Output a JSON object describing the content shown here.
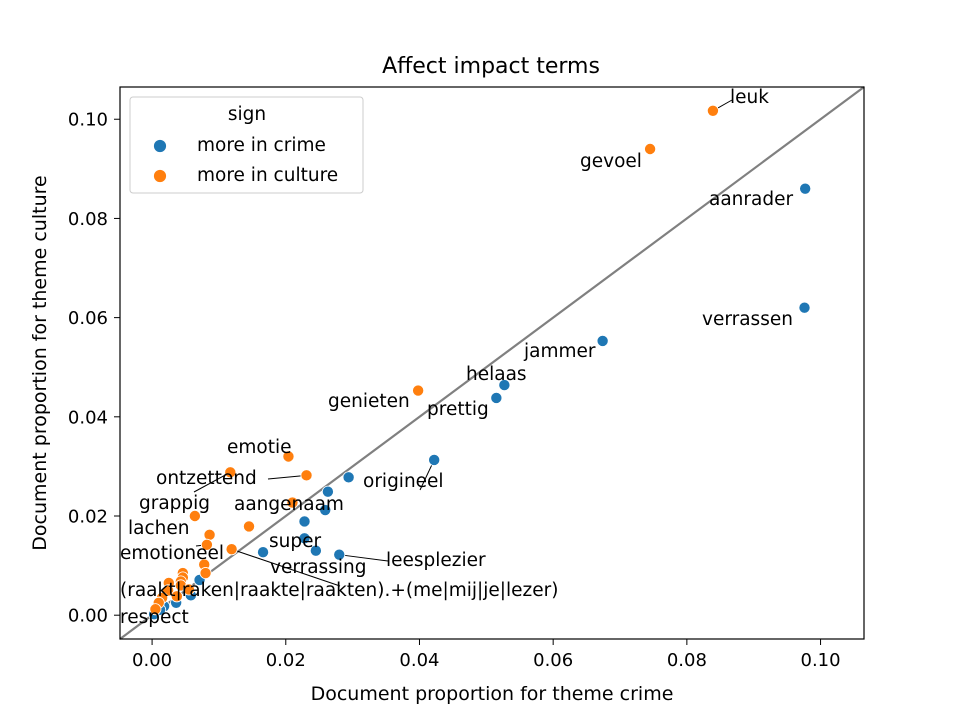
{
  "chart_data": {
    "type": "scatter",
    "title": "Affect impact terms",
    "xlabel": "Document proportion for theme crime",
    "ylabel": "Document proportion for theme culture",
    "xlim": [
      -0.0048,
      0.1065
    ],
    "ylim": [
      -0.0048,
      0.1065
    ],
    "xticks": [
      "0.00",
      "0.02",
      "0.04",
      "0.06",
      "0.08",
      "0.10"
    ],
    "yticks": [
      "0.00",
      "0.02",
      "0.04",
      "0.06",
      "0.08",
      "0.10"
    ],
    "tick_values": [
      0,
      0.02,
      0.04,
      0.06,
      0.08,
      0.1
    ],
    "reference_line": "y = x",
    "grid": false,
    "legend": {
      "title": "sign",
      "placement": "upper-left",
      "entries": [
        {
          "label": "more in crime",
          "color": "#1f77b4"
        },
        {
          "label": "more in culture",
          "color": "#ff7f0e"
        }
      ]
    },
    "colors": {
      "more in crime": "#1f77b4",
      "more in culture": "#ff7f0e",
      "diagonal": "#808080"
    },
    "series": [
      {
        "name": "more in crime",
        "points": [
          [
            0.0977,
            0.086
          ],
          [
            0.0976,
            0.062
          ],
          [
            0.0674,
            0.0553
          ],
          [
            0.0527,
            0.0464
          ],
          [
            0.0515,
            0.0438
          ],
          [
            0.0422,
            0.0313
          ],
          [
            0.0294,
            0.0278
          ],
          [
            0.0263,
            0.0249
          ],
          [
            0.0259,
            0.0212
          ],
          [
            0.0228,
            0.0189
          ],
          [
            0.0228,
            0.0155
          ],
          [
            0.0245,
            0.013
          ],
          [
            0.028,
            0.0122
          ],
          [
            0.0166,
            0.0127
          ],
          [
            0.0071,
            0.0071
          ],
          [
            0.0058,
            0.004
          ],
          [
            0.0036,
            0.0025
          ],
          [
            0.0018,
            0.0018
          ],
          [
            0.0008,
            0.0008
          ],
          [
            0.0003,
            0.0002
          ],
          [
            0.0012,
            0.0011
          ]
        ]
      },
      {
        "name": "more in culture",
        "points": [
          [
            0.0839,
            0.1017
          ],
          [
            0.0745,
            0.094
          ],
          [
            0.0398,
            0.0453
          ],
          [
            0.0204,
            0.032
          ],
          [
            0.0117,
            0.0288
          ],
          [
            0.0231,
            0.0282
          ],
          [
            0.021,
            0.0227
          ],
          [
            0.0064,
            0.02
          ],
          [
            0.0086,
            0.0162
          ],
          [
            0.0145,
            0.0179
          ],
          [
            0.0082,
            0.0142
          ],
          [
            0.0119,
            0.0133
          ],
          [
            0.0078,
            0.0102
          ],
          [
            0.008,
            0.0085
          ],
          [
            0.0046,
            0.0085
          ],
          [
            0.0046,
            0.0076
          ],
          [
            0.0043,
            0.0068
          ],
          [
            0.0043,
            0.006
          ],
          [
            0.0025,
            0.0065
          ],
          [
            0.0024,
            0.005
          ],
          [
            0.0015,
            0.0035
          ],
          [
            0.0037,
            0.0038
          ],
          [
            0.001,
            0.0025
          ],
          [
            0.0055,
            0.0052
          ],
          [
            0.0005,
            0.0012
          ]
        ]
      }
    ],
    "annotations": [
      {
        "text": "leuk",
        "point": [
          0.0839,
          0.1017
        ],
        "leader": true
      },
      {
        "text": "gevoel",
        "point": [
          0.0745,
          0.094
        ],
        "leader": false
      },
      {
        "text": "aanrader",
        "point": [
          0.0977,
          0.086
        ],
        "leader": false
      },
      {
        "text": "verrassen",
        "point": [
          0.0976,
          0.062
        ],
        "leader": false
      },
      {
        "text": "jammer",
        "point": [
          0.0674,
          0.0553
        ],
        "leader": false
      },
      {
        "text": "helaas",
        "point": [
          0.0527,
          0.0464
        ],
        "leader": false
      },
      {
        "text": "genieten",
        "point": [
          0.0398,
          0.0453
        ],
        "leader": false
      },
      {
        "text": "prettig",
        "point": [
          0.0515,
          0.0438
        ],
        "leader": false
      },
      {
        "text": "emotie",
        "point": [
          0.0204,
          0.032
        ],
        "leader": false
      },
      {
        "text": "ontzettend",
        "point": [
          0.0231,
          0.0282
        ],
        "leader": true
      },
      {
        "text": "origineel",
        "point": [
          0.0422,
          0.0313
        ],
        "leader": true
      },
      {
        "text": "grappig",
        "point": [
          0.0117,
          0.0288
        ],
        "leader": true
      },
      {
        "text": "aangenaam",
        "point": [
          0.021,
          0.0227
        ],
        "leader": false
      },
      {
        "text": "lachen",
        "point": [
          0.0064,
          0.02
        ],
        "leader": false
      },
      {
        "text": "super",
        "point": [
          0.0228,
          0.0155
        ],
        "leader": false
      },
      {
        "text": "emotioneel",
        "point": [
          0.0082,
          0.0142
        ],
        "leader": true
      },
      {
        "text": "leesplezier",
        "point": [
          0.028,
          0.0122
        ],
        "leader": true
      },
      {
        "text": "verrassing",
        "point": [
          0.0245,
          0.013
        ],
        "leader": false
      },
      {
        "text": "(raakt|raken|raakte|raakten).+(me|mij|je|lezer)",
        "point": [
          0.0119,
          0.0133
        ],
        "leader": true
      },
      {
        "text": "respect",
        "point": [
          0.0005,
          0.0012
        ],
        "leader": false
      }
    ]
  }
}
